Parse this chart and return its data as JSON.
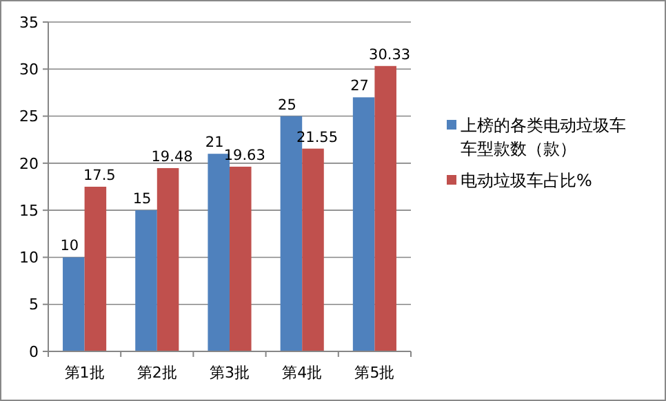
{
  "chart_data": {
    "type": "bar",
    "categories": [
      "第1批",
      "第2批",
      "第3批",
      "第4批",
      "第5批"
    ],
    "series": [
      {
        "name": "上榜的各类电动垃圾车车型款数（款）",
        "color": "#4f81bd",
        "values": [
          10,
          15,
          21,
          25,
          27
        ]
      },
      {
        "name": "电动垃圾车占比%",
        "color": "#c0504d",
        "values": [
          17.5,
          19.48,
          19.63,
          21.55,
          30.33
        ]
      }
    ],
    "ylim": [
      0,
      35
    ],
    "yticks": [
      0,
      5,
      10,
      15,
      20,
      25,
      30,
      35
    ],
    "grid": "y",
    "legend": "right",
    "data_labels": true
  }
}
